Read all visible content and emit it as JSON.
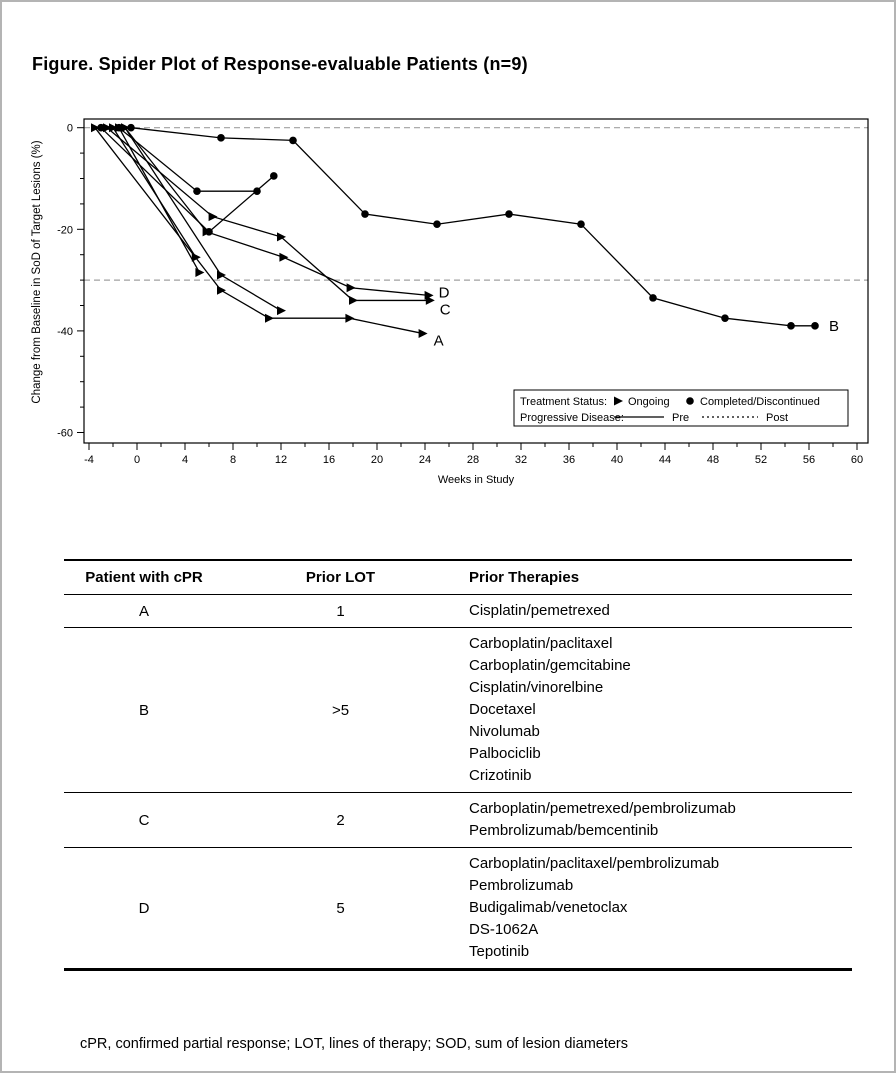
{
  "title": "Figure. Spider Plot of Response-evaluable Patients (n=9)",
  "chart_data": {
    "type": "line",
    "title": "",
    "xlabel": "Weeks in Study",
    "ylabel": "Change from Baseline in SoD of Target Lesions (%)",
    "xlim": [
      -6,
      61
    ],
    "ylim": [
      -62,
      1
    ],
    "x_major_ticks": [
      -4,
      0,
      4,
      8,
      12,
      16,
      20,
      24,
      28,
      32,
      36,
      40,
      44,
      48,
      52,
      56,
      60
    ],
    "x_minor_step": 2,
    "y_major_ticks": [
      0,
      -20,
      -40,
      -60
    ],
    "y_minor_step": 5,
    "reference_lines_y": [
      0,
      -30
    ],
    "grid": "off",
    "legend_position": "inside-bottom-right",
    "legend": {
      "treatment_status_label": "Treatment Status:",
      "ongoing_label": "Ongoing",
      "completed_label": "Completed/Discontinued",
      "progressive_disease_label": "Progressive Disease:",
      "pre_label": "Pre",
      "post_label": "Post"
    },
    "series": [
      {
        "name": "patient-A",
        "end_label": "A",
        "marker": "triangle",
        "status": "ongoing",
        "points": [
          [
            -3.5,
            0
          ],
          [
            7,
            -32
          ],
          [
            11,
            -37.5
          ],
          [
            17.7,
            -37.5
          ],
          [
            23.8,
            -40.5
          ]
        ]
      },
      {
        "name": "patient-B",
        "end_label": "B",
        "marker": "circle",
        "status": "completed",
        "points": [
          [
            -0.5,
            0
          ],
          [
            7,
            -2
          ],
          [
            13,
            -2.5
          ],
          [
            19,
            -17
          ],
          [
            25,
            -19
          ],
          [
            31,
            -17
          ],
          [
            37,
            -19
          ],
          [
            43,
            -33.5
          ],
          [
            49,
            -37.5
          ],
          [
            54.5,
            -39
          ],
          [
            56.5,
            -39
          ]
        ]
      },
      {
        "name": "patient-C",
        "end_label": "C",
        "marker": "triangle",
        "status": "ongoing",
        "points": [
          [
            -2.5,
            0
          ],
          [
            6.3,
            -17.5
          ],
          [
            12,
            -21.5
          ],
          [
            18,
            -34
          ],
          [
            24.4,
            -34
          ]
        ]
      },
      {
        "name": "patient-D",
        "end_label": "D",
        "marker": "triangle",
        "status": "ongoing",
        "points": [
          [
            -1,
            0
          ],
          [
            5.8,
            -20.5
          ],
          [
            12.2,
            -25.5
          ],
          [
            17.8,
            -31.5
          ],
          [
            24.3,
            -33
          ]
        ]
      },
      {
        "name": "patient-5",
        "end_label": "",
        "marker": "circle",
        "status": "completed",
        "points": [
          [
            -1.5,
            0
          ],
          [
            5,
            -12.5
          ],
          [
            10,
            -12.5
          ]
        ]
      },
      {
        "name": "patient-6",
        "end_label": "",
        "marker": "circle",
        "status": "completed",
        "points": [
          [
            -3,
            0
          ],
          [
            6,
            -20.5
          ],
          [
            11.4,
            -9.5
          ]
        ]
      },
      {
        "name": "patient-7",
        "end_label": "",
        "marker": "triangle",
        "status": "ongoing",
        "points": [
          [
            -1,
            0
          ],
          [
            7,
            -29
          ],
          [
            12,
            -36
          ]
        ]
      },
      {
        "name": "patient-8",
        "end_label": "",
        "marker": "triangle",
        "status": "ongoing",
        "points": [
          [
            -2,
            0
          ],
          [
            4.9,
            -25.5
          ]
        ]
      },
      {
        "name": "patient-9",
        "end_label": "",
        "marker": "triangle",
        "status": "ongoing",
        "points": [
          [
            -1.5,
            0
          ],
          [
            5.2,
            -28.5
          ]
        ]
      }
    ],
    "colors": {
      "line": "#000000",
      "reference_line": "#a0a0a0",
      "background": "#ffffff"
    }
  },
  "table": {
    "headers": [
      "Patient with cPR",
      "Prior LOT",
      "Prior Therapies"
    ],
    "rows": [
      {
        "patient": "A",
        "prior_lot": "1",
        "therapies": [
          "Cisplatin/pemetrexed"
        ]
      },
      {
        "patient": "B",
        "prior_lot": ">5",
        "therapies": [
          "Carboplatin/paclitaxel",
          "Carboplatin/gemcitabine",
          "Cisplatin/vinorelbine",
          "Docetaxel",
          "Nivolumab",
          "Palbociclib",
          "Crizotinib"
        ]
      },
      {
        "patient": "C",
        "prior_lot": "2",
        "therapies": [
          "Carboplatin/pemetrexed/pembrolizumab",
          "Pembrolizumab/bemcentinib"
        ]
      },
      {
        "patient": "D",
        "prior_lot": "5",
        "therapies": [
          "Carboplatin/paclitaxel/pembrolizumab",
          "Pembrolizumab",
          "Budigalimab/venetoclax",
          "DS-1062A",
          "Tepotinib"
        ]
      }
    ]
  },
  "footnote": "cPR, confirmed partial response; LOT, lines of therapy; SOD, sum of lesion diameters"
}
